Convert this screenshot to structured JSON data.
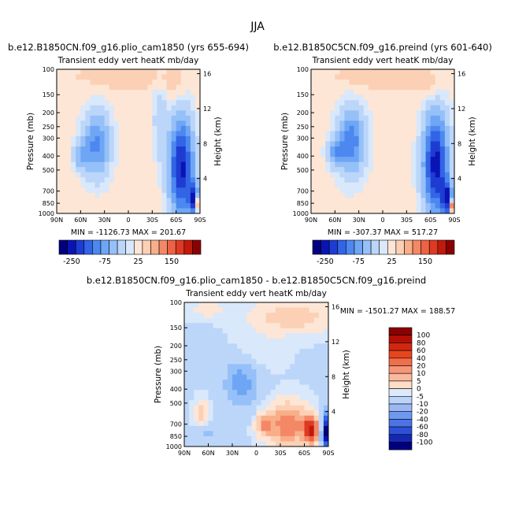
{
  "figure": {
    "title": "JJA"
  },
  "colors": {
    "diverging": [
      "#00007f",
      "#0a14b4",
      "#1e3cd2",
      "#3264e6",
      "#4d88f0",
      "#6ea6f5",
      "#96c0f8",
      "#bcd6fa",
      "#d9e8fb",
      "#fde6d6",
      "#fcd0b4",
      "#f9ae8a",
      "#f48866",
      "#ee6244",
      "#de3a22",
      "#c01a0c",
      "#8b0000"
    ]
  },
  "chart_data": [
    {
      "type": "heatmap",
      "id": "panel-plio",
      "run_title": "b.e12.B1850CN.f09_g16.plio_cam1850 (yrs 655-694)",
      "variable_title": "Transient eddy vert heatK mb/day",
      "ylabel": "Pressure (mb)",
      "ylabel_right": "Height (km)",
      "x_ticks": [
        "90N",
        "60N",
        "30N",
        "0",
        "30S",
        "60S",
        "90S"
      ],
      "x_values": [
        90,
        60,
        30,
        0,
        -30,
        -60,
        -90
      ],
      "y_ticks": [
        100,
        150,
        200,
        250,
        300,
        400,
        500,
        700,
        850,
        1000
      ],
      "y_range": [
        100,
        1000
      ],
      "height_ticks": [
        4,
        8,
        12,
        16
      ],
      "stats": "MIN = -1126.73   MAX = 201.67",
      "colorbar_labels": [
        "-250",
        "-75",
        "25",
        "150"
      ],
      "colorbar_levels": 17
    },
    {
      "type": "heatmap",
      "id": "panel-preind",
      "run_title": "b.e12.B1850C5CN.f09_g16.preind (yrs 601-640)",
      "variable_title": "Transient eddy vert heatK mb/day",
      "ylabel": "Pressure (mb)",
      "ylabel_right": "Height (km)",
      "x_ticks": [
        "90N",
        "60N",
        "30N",
        "0",
        "30S",
        "60S",
        "90S"
      ],
      "x_values": [
        90,
        60,
        30,
        0,
        -30,
        -60,
        -90
      ],
      "y_ticks": [
        100,
        150,
        200,
        250,
        300,
        400,
        500,
        700,
        850,
        1000
      ],
      "y_range": [
        100,
        1000
      ],
      "height_ticks": [
        4,
        8,
        12,
        16
      ],
      "stats": "MIN = -307.37   MAX = 517.27",
      "colorbar_labels": [
        "-250",
        "-75",
        "25",
        "150"
      ],
      "colorbar_levels": 17
    },
    {
      "type": "heatmap",
      "id": "panel-diff",
      "run_title": "b.e12.B1850CN.f09_g16.plio_cam1850 - b.e12.B1850C5CN.f09_g16.preind",
      "variable_title": "Transient eddy vert heatK mb/day",
      "ylabel": "Pressure (mb)",
      "ylabel_right": "Height (km)",
      "x_ticks": [
        "90N",
        "60N",
        "30N",
        "0",
        "30S",
        "60S",
        "90S"
      ],
      "x_values": [
        90,
        60,
        30,
        0,
        -30,
        -60,
        -90
      ],
      "y_ticks": [
        100,
        150,
        200,
        250,
        300,
        400,
        500,
        700,
        850,
        1000
      ],
      "y_range": [
        100,
        1000
      ],
      "height_ticks": [
        4,
        8,
        12,
        16
      ],
      "stats": "MIN = -1501.27   MAX = 188.57",
      "colorbar_labels": [
        "100",
        "80",
        "60",
        "40",
        "20",
        "10",
        "5",
        "0",
        "-5",
        "-10",
        "-20",
        "-40",
        "-60",
        "-80",
        "-100"
      ]
    }
  ]
}
